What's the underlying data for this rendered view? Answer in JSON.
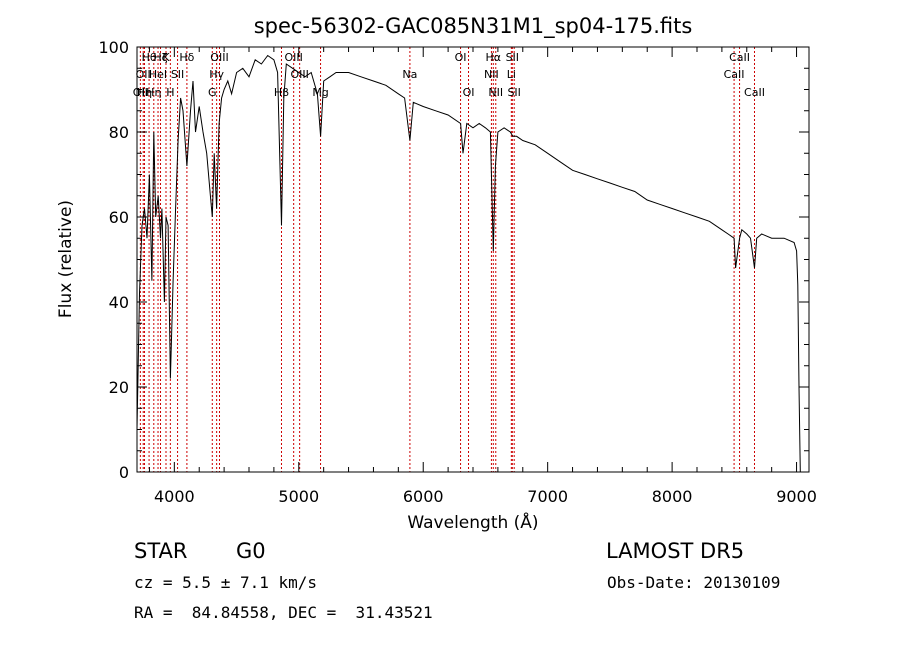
{
  "chart_data": {
    "type": "line",
    "title": "spec-56302-GAC085N31M1_sp04-175.fits",
    "xlabel": "Wavelength (Å)",
    "ylabel": "Flux (relative)",
    "xlim": [
      3700,
      9100
    ],
    "ylim": [
      0,
      100
    ],
    "xticks": [
      4000,
      5000,
      6000,
      7000,
      8000,
      9000
    ],
    "yticks": [
      0,
      20,
      40,
      60,
      80,
      100
    ],
    "xtick_labels": [
      "4000",
      "5000",
      "6000",
      "7000",
      "8000",
      "9000"
    ],
    "ytick_labels": [
      "0",
      "20",
      "40",
      "60",
      "80",
      "100"
    ],
    "line_color": "#000000",
    "marker_color": "#cc0000",
    "grid": false,
    "series": [
      {
        "x": [
          3700,
          3720,
          3740,
          3760,
          3780,
          3800,
          3820,
          3835,
          3850,
          3870,
          3889,
          3900,
          3920,
          3933,
          3950,
          3968,
          3990,
          4010,
          4030,
          4050,
          4070,
          4101,
          4130,
          4150,
          4170,
          4200,
          4230,
          4260,
          4290,
          4305,
          4320,
          4340,
          4360,
          4380,
          4400,
          4430,
          4460,
          4500,
          4550,
          4600,
          4650,
          4700,
          4750,
          4800,
          4830,
          4861,
          4880,
          4900,
          4950,
          5000,
          5050,
          5100,
          5150,
          5175,
          5200,
          5250,
          5300,
          5400,
          5500,
          5600,
          5700,
          5800,
          5850,
          5893,
          5920,
          6000,
          6100,
          6200,
          6300,
          6320,
          6350,
          6400,
          6450,
          6500,
          6540,
          6563,
          6580,
          6600,
          6650,
          6700,
          6720,
          6750,
          6800,
          6900,
          7000,
          7100,
          7200,
          7300,
          7400,
          7500,
          7600,
          7700,
          7800,
          7900,
          8000,
          8100,
          8200,
          8300,
          8400,
          8450,
          8498,
          8510,
          8542,
          8560,
          8600,
          8630,
          8662,
          8680,
          8720,
          8800,
          8900,
          8980,
          9000,
          9010,
          9020,
          9030
        ],
        "y": [
          10,
          42,
          58,
          62,
          55,
          70,
          45,
          80,
          60,
          65,
          55,
          62,
          40,
          60,
          58,
          22,
          45,
          62,
          78,
          88,
          85,
          72,
          85,
          92,
          80,
          86,
          80,
          75,
          65,
          60,
          75,
          62,
          82,
          88,
          90,
          92,
          89,
          94,
          95,
          93,
          97,
          96,
          98,
          97,
          94,
          58,
          88,
          96,
          95,
          94,
          93,
          94,
          89,
          79,
          92,
          93,
          94,
          94,
          93,
          92,
          91,
          89,
          88,
          78,
          87,
          86,
          85,
          84,
          82,
          75,
          82,
          81,
          82,
          81,
          80,
          52,
          72,
          80,
          81,
          80,
          79,
          79,
          78,
          77,
          75,
          73,
          71,
          70,
          69,
          68,
          67,
          66,
          64,
          63,
          62,
          61,
          60,
          59,
          57,
          56,
          55,
          48,
          55,
          57,
          56,
          55,
          48,
          55,
          56,
          55,
          55,
          54,
          52,
          44,
          20,
          0
        ]
      }
    ],
    "lines": [
      {
        "x": 3727,
        "label": "OII",
        "row": 2
      },
      {
        "x": 3750,
        "label": "OII",
        "row": 1
      },
      {
        "x": 3760,
        "label": "Hη",
        "row": 2
      },
      {
        "x": 3797,
        "label": "Hθ",
        "row": 0
      },
      {
        "x": 3835,
        "label": "Hη",
        "row": 2
      },
      {
        "x": 3869,
        "label": "HeI",
        "row": 1
      },
      {
        "x": 3889,
        "label": "Hζ",
        "row": 0
      },
      {
        "x": 3933,
        "label": "K",
        "row": 0
      },
      {
        "x": 3968,
        "label": "H",
        "row": 2
      },
      {
        "x": 4026,
        "label": "SII",
        "row": 1
      },
      {
        "x": 4101,
        "label": "Hδ",
        "row": 0
      },
      {
        "x": 4305,
        "label": "G",
        "row": 2
      },
      {
        "x": 4340,
        "label": "Hγ",
        "row": 1
      },
      {
        "x": 4363,
        "label": "OIII",
        "row": 0
      },
      {
        "x": 4861,
        "label": "Hβ",
        "row": 2
      },
      {
        "x": 4959,
        "label": "OIII",
        "row": 0
      },
      {
        "x": 5007,
        "label": "OIII",
        "row": 1
      },
      {
        "x": 5175,
        "label": "Mg",
        "row": 2
      },
      {
        "x": 5893,
        "label": "Na",
        "row": 1
      },
      {
        "x": 6300,
        "label": "OI",
        "row": 0
      },
      {
        "x": 6364,
        "label": "OI",
        "row": 2
      },
      {
        "x": 6548,
        "label": "NII",
        "row": 1
      },
      {
        "x": 6563,
        "label": "Hα",
        "row": 0
      },
      {
        "x": 6583,
        "label": "NII",
        "row": 2
      },
      {
        "x": 6708,
        "label": "Li",
        "row": 1
      },
      {
        "x": 6716,
        "label": "SII",
        "row": 0
      },
      {
        "x": 6731,
        "label": "SII",
        "row": 2
      },
      {
        "x": 8498,
        "label": "CaII",
        "row": 1
      },
      {
        "x": 8542,
        "label": "CaII",
        "row": 0
      },
      {
        "x": 8662,
        "label": "CaII",
        "row": 2
      }
    ]
  },
  "info": {
    "class": "STAR",
    "subclass": "G0",
    "survey": "LAMOST DR5",
    "cz": "cz = 5.5 ± 7.1 km/s",
    "obs_date": "Obs-Date: 20130109",
    "coords": "RA =  84.84558, DEC =  31.43521"
  }
}
